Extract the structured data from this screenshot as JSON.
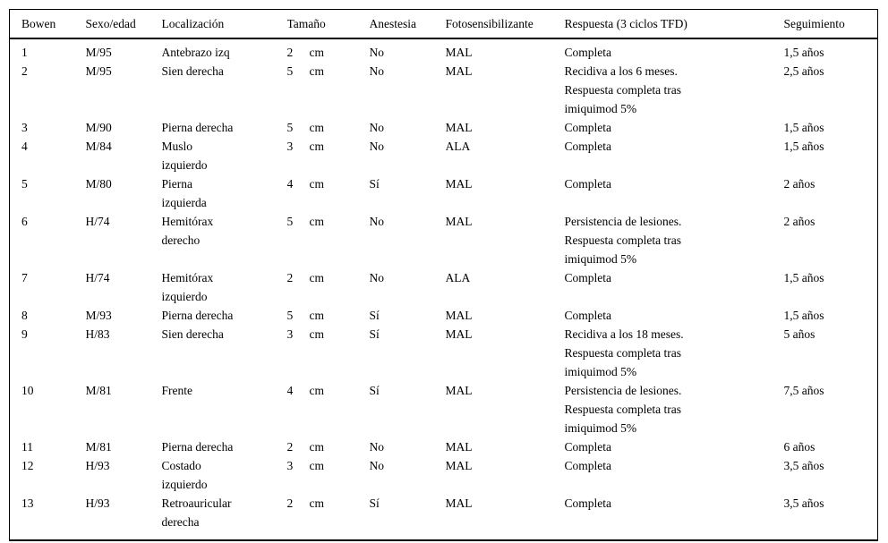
{
  "colors": {
    "text": "#000000",
    "border": "#000000",
    "background": "#ffffff"
  },
  "table": {
    "headers": {
      "bowen": "Bowen",
      "sexo_edad": "Sexo/edad",
      "localizacion": "Localización",
      "tamano": "Tamaño",
      "anestesia": "Anestesia",
      "fotosensibilizante": "Fotosensibilizante",
      "respuesta": "Respuesta (3 ciclos TFD)",
      "seguimiento": "Seguimiento"
    },
    "rows": [
      {
        "bowen": "1",
        "sexo_edad": "M/95",
        "localizacion": "Antebrazo izq",
        "tamano": "2",
        "unidad": "cm",
        "anestesia": "No",
        "fotosensibilizante": "MAL",
        "respuesta": "Completa",
        "seguimiento": "1,5 años"
      },
      {
        "bowen": "2",
        "sexo_edad": "M/95",
        "localizacion": "Sien derecha",
        "tamano": "5",
        "unidad": "cm",
        "anestesia": "No",
        "fotosensibilizante": "MAL",
        "respuesta": "Recidiva a los 6 meses.\nRespuesta completa tras\nimiquimod 5%",
        "seguimiento": "2,5 años"
      },
      {
        "bowen": "3",
        "sexo_edad": "M/90",
        "localizacion": "Pierna derecha",
        "tamano": "5",
        "unidad": "cm",
        "anestesia": "No",
        "fotosensibilizante": "MAL",
        "respuesta": "Completa",
        "seguimiento": "1,5 años"
      },
      {
        "bowen": "4",
        "sexo_edad": "M/84",
        "localizacion": "Muslo\nizquierdo",
        "tamano": "3",
        "unidad": "cm",
        "anestesia": "No",
        "fotosensibilizante": "ALA",
        "respuesta": "Completa",
        "seguimiento": "1,5 años"
      },
      {
        "bowen": "5",
        "sexo_edad": "M/80",
        "localizacion": "Pierna\nizquierda",
        "tamano": "4",
        "unidad": "cm",
        "anestesia": "Sí",
        "fotosensibilizante": "MAL",
        "respuesta": "Completa",
        "seguimiento": "2 años"
      },
      {
        "bowen": "6",
        "sexo_edad": "H/74",
        "localizacion": "Hemitórax\nderecho",
        "tamano": "5",
        "unidad": "cm",
        "anestesia": "No",
        "fotosensibilizante": "MAL",
        "respuesta": "Persistencia de lesiones.\nRespuesta completa tras\nimiquimod 5%",
        "seguimiento": "2 años"
      },
      {
        "bowen": "7",
        "sexo_edad": "H/74",
        "localizacion": "Hemitórax\nizquierdo",
        "tamano": "2",
        "unidad": "cm",
        "anestesia": "No",
        "fotosensibilizante": "ALA",
        "respuesta": "Completa",
        "seguimiento": "1,5 años"
      },
      {
        "bowen": "8",
        "sexo_edad": "M/93",
        "localizacion": "Pierna derecha",
        "tamano": "5",
        "unidad": "cm",
        "anestesia": "Sí",
        "fotosensibilizante": "MAL",
        "respuesta": "Completa",
        "seguimiento": "1,5 años"
      },
      {
        "bowen": "9",
        "sexo_edad": "H/83",
        "localizacion": "Sien derecha",
        "tamano": "3",
        "unidad": "cm",
        "anestesia": "Sí",
        "fotosensibilizante": "MAL",
        "respuesta": "Recidiva a los 18 meses.\nRespuesta completa tras\nimiquimod 5%",
        "seguimiento": "5 años"
      },
      {
        "bowen": "10",
        "sexo_edad": "M/81",
        "localizacion": "Frente",
        "tamano": "4",
        "unidad": "cm",
        "anestesia": "Sí",
        "fotosensibilizante": "MAL",
        "respuesta": "Persistencia de lesiones.\nRespuesta completa tras\nimiquimod 5%",
        "seguimiento": "7,5 años"
      },
      {
        "bowen": "11",
        "sexo_edad": "M/81",
        "localizacion": "Pierna derecha",
        "tamano": "2",
        "unidad": "cm",
        "anestesia": "No",
        "fotosensibilizante": "MAL",
        "respuesta": "Completa",
        "seguimiento": "6 años"
      },
      {
        "bowen": "12",
        "sexo_edad": "H/93",
        "localizacion": "Costado\nizquierdo",
        "tamano": "3",
        "unidad": "cm",
        "anestesia": "No",
        "fotosensibilizante": "MAL",
        "respuesta": "Completa",
        "seguimiento": "3,5 años"
      },
      {
        "bowen": "13",
        "sexo_edad": "H/93",
        "localizacion": "Retroauricular\nderecha",
        "tamano": "2",
        "unidad": "cm",
        "anestesia": "Sí",
        "fotosensibilizante": "MAL",
        "respuesta": "Completa",
        "seguimiento": "3,5 años"
      }
    ]
  }
}
